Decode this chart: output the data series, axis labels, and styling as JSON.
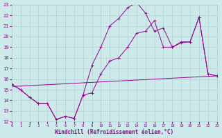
{
  "xlabel": "Windchill (Refroidissement éolien,°C)",
  "xlim": [
    0,
    23
  ],
  "ylim": [
    12,
    23
  ],
  "xticks": [
    0,
    1,
    2,
    3,
    4,
    5,
    6,
    7,
    8,
    9,
    10,
    11,
    12,
    13,
    14,
    15,
    16,
    17,
    18,
    19,
    20,
    21,
    22,
    23
  ],
  "yticks": [
    12,
    13,
    14,
    15,
    16,
    17,
    18,
    19,
    20,
    21,
    22,
    23
  ],
  "bg_color": "#cceaea",
  "line_color": "#990099",
  "grid_color": "#aacccc",
  "line1_x": [
    0,
    1,
    2,
    3,
    4,
    5,
    6,
    7,
    8,
    9,
    10,
    11,
    12,
    13,
    14,
    15,
    16,
    17,
    18,
    19,
    20,
    21,
    22,
    23
  ],
  "line1_y": [
    15.5,
    15.0,
    14.3,
    13.7,
    13.7,
    12.2,
    12.5,
    12.3,
    14.5,
    17.3,
    19.0,
    21.0,
    21.7,
    22.7,
    23.2,
    22.2,
    20.5,
    20.8,
    19.0,
    19.4,
    19.5,
    21.8,
    16.5,
    16.3
  ],
  "line2_x": [
    0,
    1,
    2,
    3,
    4,
    5,
    6,
    7,
    8,
    9,
    10,
    11,
    12,
    13,
    14,
    15,
    16,
    17,
    18,
    19,
    20,
    21,
    22,
    23
  ],
  "line2_y": [
    15.5,
    15.0,
    14.3,
    13.7,
    13.7,
    12.2,
    12.5,
    12.3,
    14.5,
    14.7,
    16.5,
    17.7,
    18.0,
    19.0,
    20.3,
    20.5,
    21.5,
    19.0,
    19.0,
    19.5,
    19.5,
    21.8,
    16.5,
    16.3
  ],
  "line3_x": [
    0,
    23
  ],
  "line3_y": [
    15.3,
    16.3
  ]
}
